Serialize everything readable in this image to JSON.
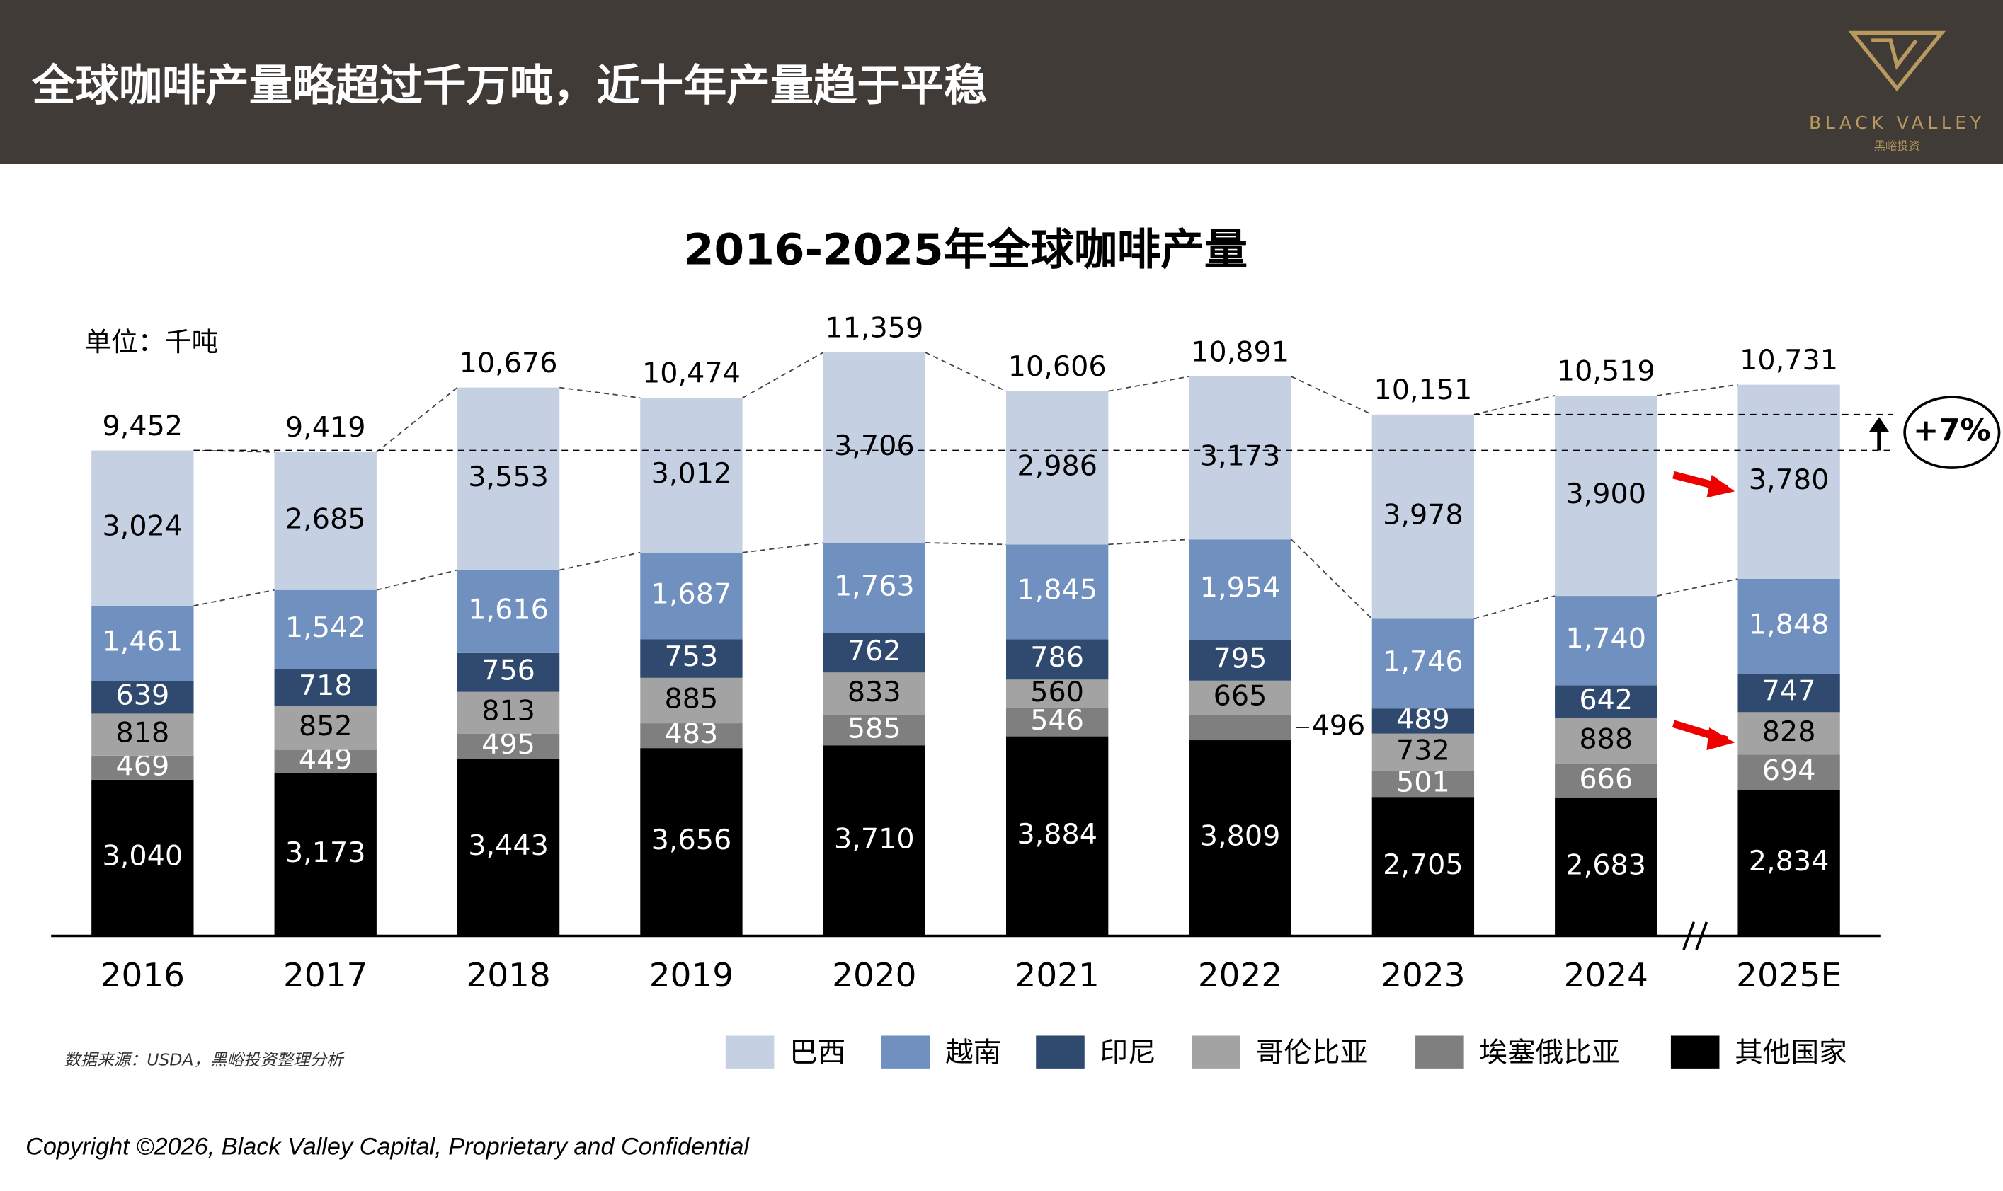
{
  "header": {
    "title": "全球咖啡产量略超过千万吨，近十年产量趋于平稳",
    "logo": "BLACK VALLEY",
    "logo_sub": "黑峪投资"
  },
  "chart_data": {
    "type": "stacked-bar",
    "title": "2016-2025年全球咖啡产量",
    "unit": "单位：千吨",
    "categories": [
      "2016",
      "2017",
      "2018",
      "2019",
      "2020",
      "2021",
      "2022",
      "2023",
      "2024",
      "2025E"
    ],
    "series": [
      {
        "name": "巴西",
        "color": "#c5d0e3",
        "values": [
          3024,
          2685,
          3553,
          3012,
          3706,
          2986,
          3173,
          3978,
          3900,
          3780
        ],
        "value_labels": [
          "3,024",
          "2,685",
          "3,553",
          "3,012",
          "3,706",
          "2,986",
          "3,173",
          "3,978",
          "3,900",
          "3,780"
        ]
      },
      {
        "name": "越南",
        "color": "#7090c0",
        "values": [
          1461,
          1542,
          1616,
          1687,
          1763,
          1845,
          1954,
          1746,
          1740,
          1848
        ],
        "value_labels": [
          "1,461",
          "1,542",
          "1,616",
          "1,687",
          "1,763",
          "1,845",
          "1,954",
          "1,746",
          "1,740",
          "1,848"
        ]
      },
      {
        "name": "印尼",
        "color": "#2f4a6e",
        "values": [
          639,
          718,
          756,
          753,
          762,
          786,
          795,
          489,
          642,
          747
        ],
        "value_labels": [
          "639",
          "718",
          "756",
          "753",
          "762",
          "786",
          "795",
          "489",
          "642",
          "747"
        ]
      },
      {
        "name": "哥伦比亚",
        "color": "#a3a3a3",
        "values": [
          818,
          852,
          813,
          885,
          833,
          560,
          665,
          732,
          888,
          828
        ],
        "value_labels": [
          "818",
          "852",
          "813",
          "885",
          "833",
          "560",
          "665",
          "732",
          "888",
          "828"
        ]
      },
      {
        "name": "埃塞俄比亚",
        "color": "#7f7f7f",
        "values": [
          469,
          449,
          495,
          483,
          585,
          546,
          496,
          501,
          666,
          694
        ],
        "value_labels": [
          "469",
          "449",
          "495",
          "483",
          "585",
          "546",
          "496",
          "501",
          "666",
          "694"
        ]
      },
      {
        "name": "其他国家",
        "color": "#000000",
        "values": [
          3040,
          3173,
          3443,
          3656,
          3710,
          3884,
          3809,
          2705,
          2683,
          2834
        ],
        "value_labels": [
          "3,040",
          "3,173",
          "3,443",
          "3,656",
          "3,710",
          "3,884",
          "3,809",
          "2,705",
          "2,683",
          "2,834"
        ]
      }
    ],
    "totals": {
      "values": [
        9452,
        9419,
        10676,
        10474,
        11359,
        10606,
        10891,
        10151,
        10519,
        10731
      ],
      "value_labels": [
        "9,452",
        "9,419",
        "10,676",
        "10,474",
        "11,359",
        "10,606",
        "10,891",
        "10,151",
        "10,519",
        "10,731"
      ]
    },
    "ylim": [
      0,
      12000
    ],
    "annotation": "+7%"
  },
  "source": "数据来源：USDA，黑峪投资整理分析",
  "copyright": "Copyright ©2026, Black Valley Capital, Proprietary and Confidential"
}
